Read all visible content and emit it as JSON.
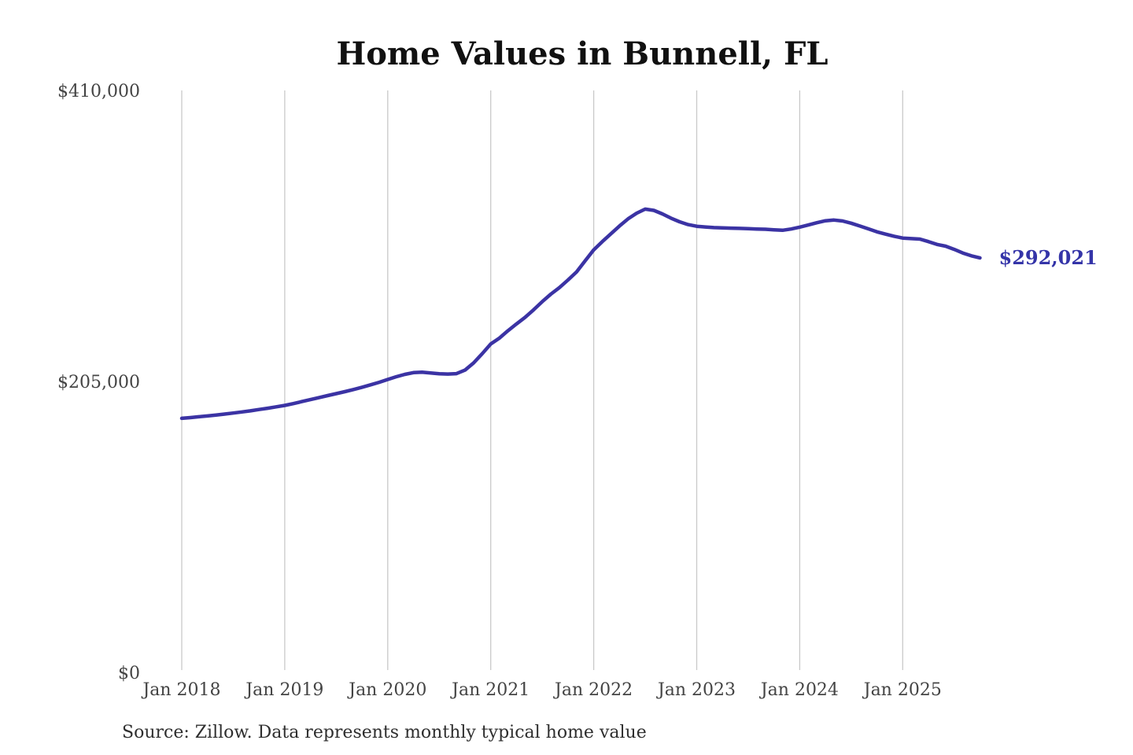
{
  "page": {
    "background_color": "#ffffff"
  },
  "chart": {
    "title": "Home Values in Bunnell, FL",
    "latest_value_label": "$292,021",
    "source_note": "Source: Zillow. Data represents monthly typical home value",
    "colors": {
      "line": "#3b33a4",
      "latest_value_label": "#3434a8",
      "gridline": "#c9c9c9",
      "axis_tick_text": "#444444",
      "title_text": "#111111",
      "source_text": "#2e2e2e"
    }
  },
  "chart_data": {
    "type": "line",
    "title": "Home Values in Bunnell, FL",
    "series_name": "Monthly typical home value",
    "frequency": "monthly",
    "start_month": "2018-01",
    "end_month": "2025-10",
    "ylim": [
      0,
      410000
    ],
    "grid": "vertical-only",
    "legend": "none",
    "latest_value": 292021,
    "y_ticks": [
      {
        "label": "$0",
        "value": 0
      },
      {
        "label": "$205,000",
        "value": 205000
      },
      {
        "label": "$410,000",
        "value": 410000
      }
    ],
    "x_ticks": [
      {
        "label": "Jan 2018",
        "month_index": 0
      },
      {
        "label": "Jan 2019",
        "month_index": 12
      },
      {
        "label": "Jan 2020",
        "month_index": 24
      },
      {
        "label": "Jan 2021",
        "month_index": 36
      },
      {
        "label": "Jan 2022",
        "month_index": 48
      },
      {
        "label": "Jan 2023",
        "month_index": 60
      },
      {
        "label": "Jan 2024",
        "month_index": 72
      },
      {
        "label": "Jan 2025",
        "month_index": 84
      }
    ],
    "values": [
      179000,
      179500,
      180100,
      180700,
      181300,
      182000,
      182700,
      183500,
      184300,
      185200,
      186100,
      187100,
      188100,
      189400,
      190800,
      192200,
      193600,
      195000,
      196400,
      197800,
      199300,
      200900,
      202600,
      204400,
      206400,
      208300,
      210000,
      211200,
      211500,
      211000,
      210400,
      210200,
      210500,
      213000,
      218000,
      224500,
      231400,
      235500,
      240700,
      245500,
      250100,
      255500,
      261200,
      266500,
      271100,
      276500,
      282200,
      290000,
      297700,
      303500,
      309000,
      314500,
      319500,
      323500,
      326400,
      325500,
      323000,
      320000,
      317500,
      315500,
      314300,
      313800,
      313400,
      313200,
      313000,
      312800,
      312600,
      312400,
      312200,
      311800,
      311500,
      312400,
      313700,
      315200,
      316800,
      318200,
      318700,
      318000,
      316500,
      314500,
      312500,
      310400,
      308800,
      307300,
      306000,
      305600,
      305300,
      303500,
      301500,
      300300,
      298000,
      295500,
      293500,
      292021
    ]
  }
}
